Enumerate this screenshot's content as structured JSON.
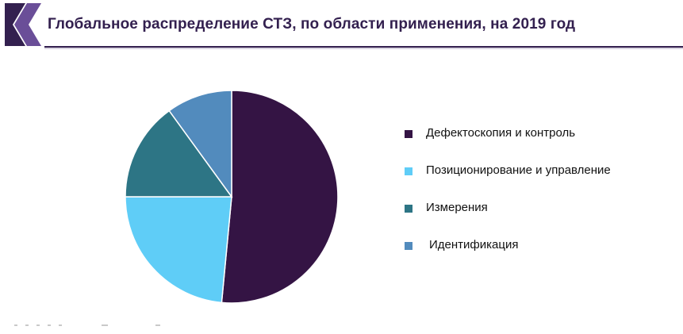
{
  "header": {
    "title": "Глобальное распределение СТЗ, по области применения, на 2019 год",
    "brand_color": "#33204f",
    "logo_accent_color": "#6a4e98"
  },
  "chart_data": {
    "type": "pie",
    "title": "Глобальное распределение СТЗ, по области применения, на 2019 год",
    "legend_position": "right",
    "series": [
      {
        "name": "Дефектоскопия и контроль",
        "value": 51.5,
        "color": "#341444"
      },
      {
        "name": "Позиционирование и управление",
        "value": 23.5,
        "color": "#5fcdf7"
      },
      {
        "name": "Измерения",
        "value": 15.0,
        "color": "#2d7585"
      },
      {
        "name": "Идентификация",
        "value": 10.0,
        "color": "#528bbd"
      }
    ]
  }
}
